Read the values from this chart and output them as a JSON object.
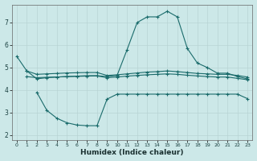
{
  "xlabel": "Humidex (Indice chaleur)",
  "bg_color": "#cce8e8",
  "grid_color": "#b8d4d4",
  "line_color": "#1a6b6b",
  "x_ticks": [
    0,
    1,
    2,
    3,
    4,
    5,
    6,
    7,
    8,
    9,
    10,
    11,
    12,
    13,
    14,
    15,
    16,
    17,
    18,
    19,
    20,
    21,
    22,
    23
  ],
  "ylim": [
    1.8,
    7.8
  ],
  "xlim": [
    -0.5,
    23.5
  ],
  "line1_x": [
    0,
    1,
    2,
    3,
    4,
    5,
    6,
    7,
    8,
    9,
    10,
    11,
    12,
    13,
    14,
    15,
    16,
    17,
    18,
    19,
    20,
    21,
    22,
    23
  ],
  "line1_y": [
    5.5,
    4.85,
    4.5,
    4.55,
    4.58,
    4.6,
    4.62,
    4.64,
    4.64,
    4.6,
    4.65,
    5.8,
    7.0,
    7.25,
    7.25,
    7.5,
    7.25,
    5.85,
    5.2,
    5.0,
    4.75,
    4.75,
    4.6,
    4.5
  ],
  "line2_x": [
    1,
    2,
    3,
    4,
    5,
    6,
    7,
    8,
    9,
    10,
    11,
    12,
    13,
    14,
    15,
    16,
    17,
    18,
    19,
    20,
    21,
    22,
    23
  ],
  "line2_y": [
    4.85,
    4.7,
    4.72,
    4.74,
    4.76,
    4.77,
    4.78,
    4.78,
    4.65,
    4.68,
    4.72,
    4.76,
    4.8,
    4.82,
    4.85,
    4.82,
    4.78,
    4.74,
    4.72,
    4.7,
    4.7,
    4.65,
    4.58
  ],
  "line3_x": [
    1,
    2,
    3,
    4,
    5,
    6,
    7,
    8,
    9,
    10,
    11,
    12,
    13,
    14,
    15,
    16,
    17,
    18,
    19,
    20,
    21,
    22,
    23
  ],
  "line3_y": [
    4.6,
    4.55,
    4.57,
    4.58,
    4.6,
    4.61,
    4.62,
    4.63,
    4.55,
    4.58,
    4.62,
    4.65,
    4.68,
    4.7,
    4.72,
    4.7,
    4.66,
    4.63,
    4.6,
    4.58,
    4.58,
    4.52,
    4.46
  ],
  "line4_x": [
    2,
    3,
    4,
    5,
    6,
    7,
    8,
    9,
    10,
    11,
    12,
    13,
    14,
    15,
    16,
    17,
    18,
    19,
    20,
    21,
    22,
    23
  ],
  "line4_y": [
    3.9,
    3.1,
    2.75,
    2.55,
    2.45,
    2.42,
    2.42,
    3.6,
    3.82,
    3.82,
    3.82,
    3.82,
    3.82,
    3.82,
    3.82,
    3.82,
    3.82,
    3.82,
    3.82,
    3.82,
    3.82,
    3.62
  ]
}
